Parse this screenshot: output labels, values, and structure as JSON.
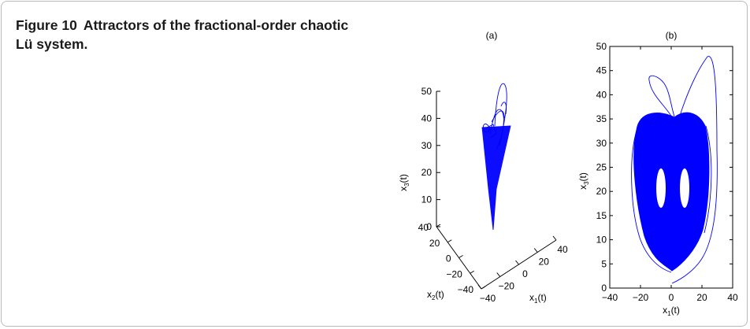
{
  "caption": {
    "label": "Figure 10",
    "text": "Attractors of the fractional-order chaotic Lü system."
  },
  "chart_data": [
    {
      "type": "line",
      "panel_label": "(a)",
      "projection": "3d",
      "axes": {
        "x": {
          "label": "x",
          "sub": "1",
          "suffix": "(t)",
          "ticks": [
            "−40",
            "−20",
            "0",
            "20",
            "40"
          ]
        },
        "y": {
          "label": "x",
          "sub": "2",
          "suffix": "(t)",
          "ticks": [
            "−40",
            "−20",
            "0",
            "20",
            "40"
          ]
        },
        "z": {
          "label": "x",
          "sub": "3",
          "suffix": "(t)",
          "ticks": [
            "0",
            "10",
            "20",
            "30",
            "40",
            "50"
          ]
        }
      },
      "grid": false,
      "color": "#0000ff"
    },
    {
      "type": "line",
      "panel_label": "(b)",
      "xlabel": {
        "label": "x",
        "sub": "1",
        "suffix": "(t)"
      },
      "ylabel": {
        "label": "x",
        "sub": "3",
        "suffix": "(t)"
      },
      "xlim": [
        -40,
        40
      ],
      "ylim": [
        0,
        50
      ],
      "xticks": [
        -40,
        -20,
        0,
        20,
        40
      ],
      "yticks": [
        0,
        5,
        10,
        15,
        20,
        25,
        30,
        35,
        40,
        45,
        50
      ],
      "xtick_labels": [
        "−40",
        "−20",
        "0",
        "20",
        "40"
      ],
      "grid": false,
      "color": "#0000ff"
    }
  ]
}
